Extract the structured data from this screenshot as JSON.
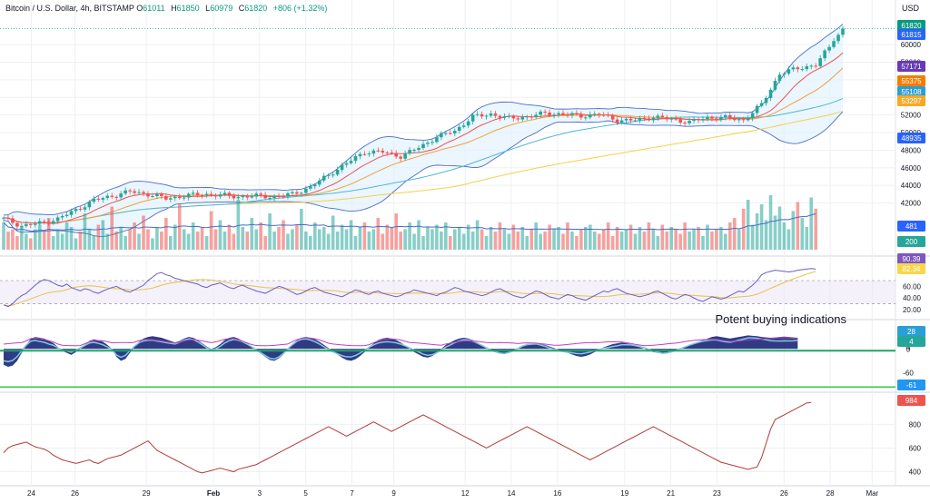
{
  "header": {
    "symbol": "Bitcoin / U.S. Dollar, 4h, BITSTAMP",
    "o_label": "O",
    "o": "61011",
    "h_label": "H",
    "h": "61850",
    "l_label": "L",
    "l": "60979",
    "c_label": "C",
    "c": "61820",
    "change": "+806 (+1.32%)",
    "currency": "USD"
  },
  "colors": {
    "up": "#26a69a",
    "down": "#ef5350",
    "bb": "#4a6cc7",
    "bb_fill": "#e3f2fd",
    "ma_fast": "#ef5350",
    "ma_mid": "#f0a040",
    "ma_slow": "#f5d04a",
    "ma_cyan": "#4fb6d8",
    "rsi": "#6b5fbf",
    "rsi_ma": "#e8c24a",
    "wave_dark": "#1e2a7a",
    "wave_light": "#7ec8e3",
    "wave_green": "#1fa36a",
    "adline": "#b23a3a",
    "grid": "#eef0f3",
    "axis_text": "#131722"
  },
  "chart_data": [
    {
      "panel": "price",
      "type": "candlestick",
      "x_start": "Jan 23",
      "x_end": "Feb 28",
      "x_ticks": [
        "24",
        "26",
        "29",
        "Feb",
        "3",
        "5",
        "7",
        "9",
        "12",
        "14",
        "16",
        "19",
        "21",
        "23",
        "26",
        "28",
        "Mar"
      ],
      "y_ticks": [
        42000,
        44000,
        46000,
        48000,
        50000,
        52000,
        54000,
        56000,
        58000,
        60000
      ],
      "ylim": [
        37000,
        62800
      ],
      "close_path": [
        [
          0,
          40200
        ],
        [
          4,
          39400
        ],
        [
          8,
          39700
        ],
        [
          12,
          40200
        ],
        [
          16,
          41200
        ],
        [
          20,
          42300
        ],
        [
          24,
          42800
        ],
        [
          28,
          43300
        ],
        [
          32,
          43000
        ],
        [
          36,
          42500
        ],
        [
          40,
          42800
        ],
        [
          44,
          43000
        ],
        [
          48,
          42900
        ],
        [
          52,
          42700
        ],
        [
          56,
          42800
        ],
        [
          60,
          42700
        ],
        [
          64,
          43000
        ],
        [
          68,
          43800
        ],
        [
          72,
          45200
        ],
        [
          76,
          46500
        ],
        [
          80,
          47800
        ],
        [
          84,
          47800
        ],
        [
          88,
          47300
        ],
        [
          92,
          48300
        ],
        [
          96,
          49500
        ],
        [
          100,
          50200
        ],
        [
          104,
          51800
        ],
        [
          108,
          52100
        ],
        [
          112,
          51600
        ],
        [
          116,
          51800
        ],
        [
          120,
          52200
        ],
        [
          124,
          52100
        ],
        [
          128,
          51900
        ],
        [
          132,
          52100
        ],
        [
          136,
          51400
        ],
        [
          140,
          51400
        ],
        [
          144,
          51800
        ],
        [
          148,
          51500
        ],
        [
          152,
          51200
        ],
        [
          156,
          51700
        ],
        [
          160,
          51700
        ],
        [
          164,
          51400
        ],
        [
          168,
          53200
        ],
        [
          172,
          56700
        ],
        [
          176,
          57300
        ],
        [
          180,
          57700
        ],
        [
          184,
          60400
        ],
        [
          186,
          61820
        ]
      ],
      "last_value_tags": [
        "61820",
        "61815",
        "60000",
        "57171",
        "55375",
        "55108",
        "53297",
        "48935"
      ]
    },
    {
      "panel": "volume",
      "type": "bar",
      "values": [
        12,
        8,
        9,
        6,
        10,
        7,
        5,
        9,
        11,
        8,
        14,
        6,
        9,
        7,
        12,
        10,
        5,
        8,
        16,
        9,
        6,
        11,
        13,
        7,
        19,
        8,
        10,
        6,
        9,
        12,
        7,
        15,
        9,
        5,
        10,
        8,
        14,
        6,
        11,
        20,
        9,
        7,
        12,
        8,
        10,
        6,
        17,
        9,
        13,
        8,
        11,
        7,
        22,
        10,
        8,
        14,
        9,
        12,
        6,
        16,
        8,
        10,
        13,
        7,
        9,
        11,
        18,
        8,
        6,
        12,
        9,
        10,
        7,
        15,
        8,
        11,
        9,
        13,
        6,
        10,
        12,
        8,
        9,
        14,
        7,
        11,
        10,
        16,
        8,
        9,
        12,
        7,
        13,
        6,
        10,
        9,
        11,
        8,
        12,
        6,
        9,
        10,
        7,
        11,
        8,
        13,
        9,
        6,
        10,
        8,
        12,
        9,
        7,
        11,
        8,
        10,
        6,
        9,
        12,
        7,
        8,
        11,
        9,
        10,
        7,
        12,
        8,
        6,
        9,
        10,
        11,
        8,
        7,
        9,
        12,
        6,
        10,
        8,
        9,
        11,
        7,
        10,
        8,
        12,
        9,
        6,
        11,
        8,
        10,
        9,
        7,
        12,
        8,
        9,
        10,
        6,
        11,
        8,
        9,
        10,
        7,
        12,
        14,
        9,
        18,
        22,
        11,
        16,
        20,
        13,
        24,
        15,
        19,
        12,
        9,
        17,
        21,
        14,
        10,
        23,
        18
      ],
      "tags": [
        "481",
        "200"
      ]
    },
    {
      "panel": "rsi",
      "type": "line",
      "y_ticks": [
        20.0,
        40.0,
        60.0
      ],
      "ylim": [
        15,
        100
      ],
      "bands": [
        30,
        70
      ],
      "values": [
        28,
        25,
        30,
        38,
        44,
        48,
        55,
        62,
        68,
        72,
        70,
        66,
        62,
        60,
        64,
        58,
        55,
        52,
        56,
        54,
        50,
        48,
        52,
        55,
        58,
        60,
        56,
        52,
        50,
        54,
        58,
        62,
        70,
        76,
        82,
        84,
        80,
        78,
        74,
        72,
        70,
        68,
        66,
        64,
        60,
        58,
        62,
        64,
        66,
        62,
        58,
        56,
        60,
        62,
        58,
        55,
        52,
        50,
        48,
        52,
        56,
        60,
        58,
        54,
        50,
        46,
        48,
        52,
        56,
        58,
        54,
        50,
        48,
        46,
        44,
        42,
        46,
        50,
        54,
        52,
        48,
        46,
        50,
        52,
        48,
        46,
        44,
        42,
        44,
        48,
        50,
        54,
        52,
        50,
        48,
        46,
        44,
        48,
        50,
        54,
        58,
        56,
        52,
        50,
        48,
        46,
        44,
        46,
        50,
        54,
        56,
        52,
        48,
        44,
        42,
        40,
        44,
        48,
        52,
        50,
        46,
        42,
        40,
        38,
        42,
        46,
        44,
        40,
        38,
        36,
        40,
        44,
        48,
        52,
        50,
        54,
        56,
        52,
        48,
        46,
        44,
        42,
        44,
        46,
        50,
        52,
        48,
        44,
        40,
        38,
        42,
        46,
        44,
        40,
        36,
        34,
        38,
        42,
        40,
        38,
        40,
        44,
        48,
        52,
        50,
        56,
        62,
        70,
        80,
        84,
        86,
        88,
        87,
        86,
        85,
        86,
        88,
        89,
        90,
        91,
        90
      ],
      "tags": [
        "90.39",
        "82.34"
      ],
      "annotation": "Potent buying indications"
    },
    {
      "panel": "oscillator",
      "type": "area",
      "y_ticks": [
        -60,
        0,
        4,
        28
      ],
      "ylim": [
        -100,
        60
      ],
      "values": [
        -40,
        -45,
        -42,
        -30,
        -10,
        10,
        25,
        30,
        28,
        26,
        20,
        15,
        5,
        -5,
        -10,
        -15,
        -8,
        0,
        10,
        20,
        24,
        22,
        18,
        10,
        0,
        -20,
        -30,
        -25,
        -10,
        5,
        18,
        26,
        30,
        32,
        30,
        28,
        24,
        20,
        16,
        20,
        26,
        30,
        28,
        22,
        14,
        6,
        0,
        4,
        12,
        22,
        28,
        30,
        26,
        20,
        12,
        4,
        -4,
        -12,
        -20,
        -28,
        -30,
        -24,
        -14,
        0,
        12,
        22,
        28,
        30,
        28,
        24,
        18,
        10,
        2,
        -6,
        -14,
        -22,
        -28,
        -30,
        -26,
        -18,
        -8,
        4,
        14,
        22,
        26,
        28,
        26,
        22,
        16,
        8,
        0,
        -8,
        -14,
        -20,
        -22,
        -18,
        -10,
        0,
        10,
        16,
        22,
        26,
        28,
        26,
        22,
        16,
        10,
        4,
        -2,
        -6,
        -10,
        -12,
        -10,
        -6,
        0,
        6,
        10,
        12,
        14,
        12,
        10,
        6,
        2,
        -2,
        -6,
        -10,
        -14,
        -18,
        -20,
        -18,
        -14,
        -8,
        -2,
        4,
        8,
        12,
        14,
        16,
        14,
        12,
        8,
        4,
        0,
        -4,
        -8,
        -10,
        -12,
        -10,
        -6,
        -2,
        2,
        6,
        10,
        14,
        18,
        22,
        26,
        30,
        32,
        30,
        28,
        26,
        28,
        30,
        32,
        34,
        33,
        32,
        30,
        29,
        28,
        29,
        30,
        31,
        30,
        29,
        28
      ],
      "tags": [
        "28",
        "4",
        "-61"
      ]
    },
    {
      "panel": "ad_line",
      "type": "line",
      "y_ticks": [
        400,
        600,
        800
      ],
      "ylim": [
        320,
        1040
      ],
      "values": [
        560,
        600,
        620,
        630,
        640,
        650,
        630,
        610,
        600,
        590,
        570,
        540,
        520,
        500,
        490,
        480,
        470,
        480,
        490,
        500,
        480,
        470,
        490,
        510,
        520,
        530,
        540,
        560,
        580,
        600,
        620,
        640,
        660,
        620,
        580,
        560,
        540,
        520,
        500,
        480,
        460,
        440,
        420,
        400,
        390,
        400,
        410,
        420,
        430,
        420,
        410,
        400,
        420,
        430,
        440,
        450,
        460,
        480,
        500,
        520,
        540,
        560,
        580,
        600,
        620,
        640,
        660,
        680,
        700,
        720,
        740,
        760,
        780,
        760,
        740,
        720,
        700,
        720,
        740,
        760,
        780,
        800,
        820,
        800,
        780,
        760,
        740,
        760,
        780,
        800,
        820,
        840,
        860,
        880,
        860,
        840,
        820,
        800,
        780,
        760,
        740,
        720,
        700,
        680,
        660,
        640,
        620,
        600,
        620,
        640,
        660,
        680,
        700,
        720,
        740,
        760,
        780,
        760,
        740,
        720,
        700,
        680,
        660,
        640,
        620,
        600,
        580,
        560,
        540,
        520,
        500,
        520,
        540,
        560,
        580,
        600,
        620,
        640,
        660,
        680,
        700,
        720,
        740,
        760,
        780,
        760,
        740,
        720,
        700,
        680,
        660,
        640,
        620,
        600,
        580,
        560,
        540,
        520,
        500,
        480,
        470,
        460,
        450,
        440,
        430,
        420,
        430,
        440,
        520,
        640,
        760,
        840,
        860,
        880,
        900,
        920,
        940,
        960,
        980,
        984
      ],
      "tags": [
        "984"
      ]
    }
  ]
}
